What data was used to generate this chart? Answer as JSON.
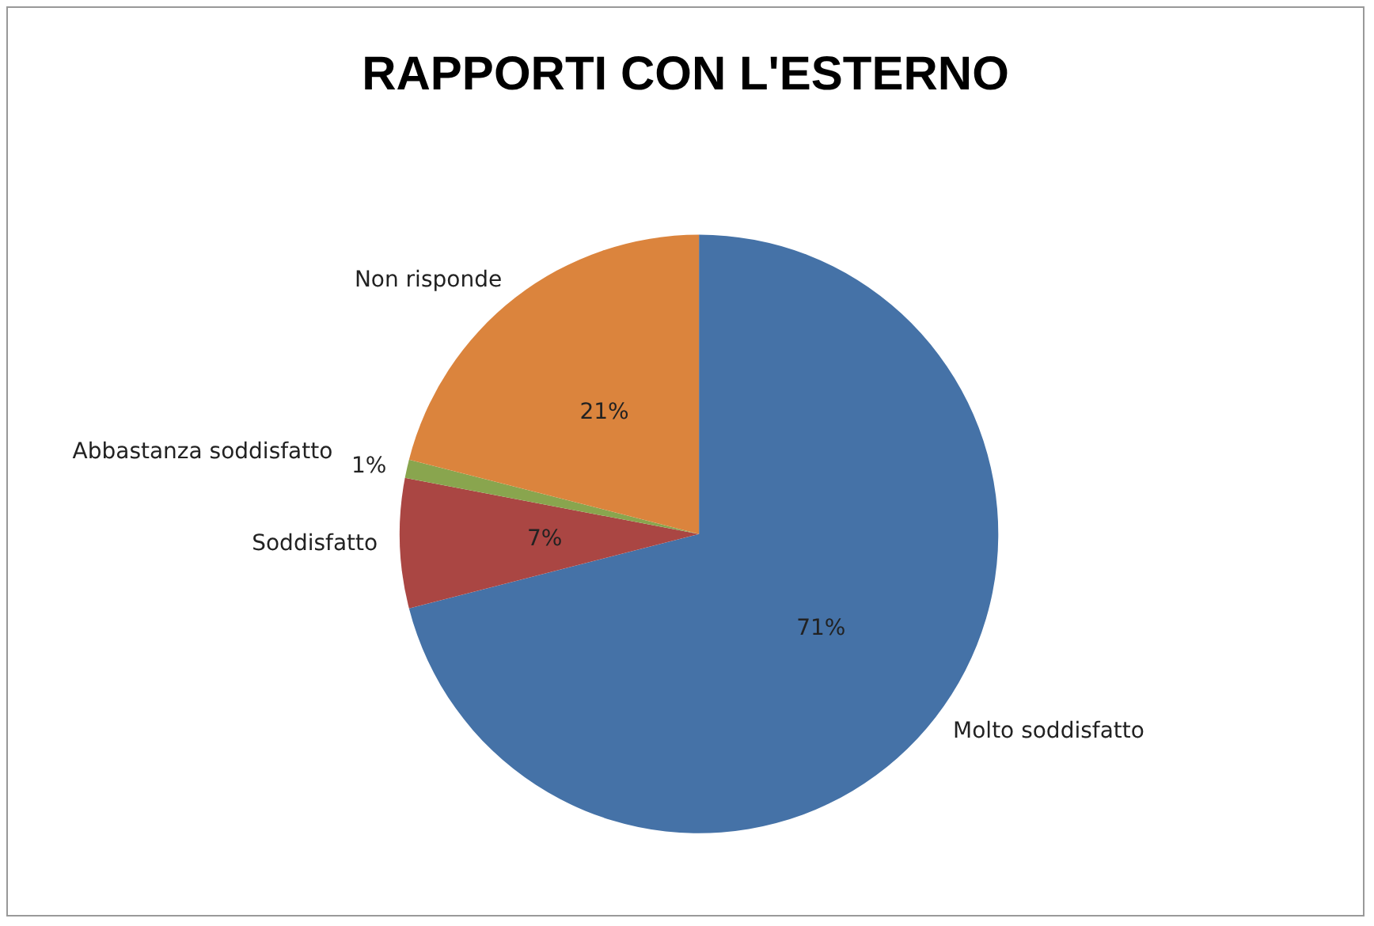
{
  "chart_data": {
    "type": "pie",
    "title": "RAPPORTI CON L'ESTERNO",
    "categories": [
      "Molto soddisfatto",
      "Soddisfatto",
      "Abbastanza soddisfatto",
      "Non risponde"
    ],
    "values": [
      71,
      7,
      1,
      21
    ],
    "colors": [
      "#4572a7",
      "#aa4643",
      "#89a54e",
      "#db843d"
    ],
    "value_labels": [
      "71%",
      "7%",
      "1%",
      "21%"
    ],
    "legend": false
  }
}
